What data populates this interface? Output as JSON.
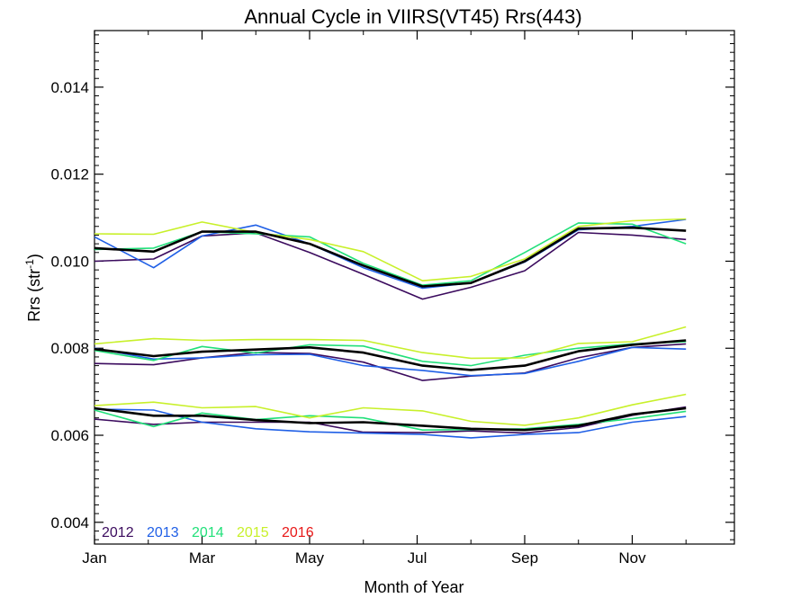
{
  "chart_data": {
    "type": "line",
    "title": "Annual Cycle in VIIRS(VT45) Rrs(443)",
    "xlabel": "Month of Year",
    "ylabel_main": "Rrs (str",
    "ylabel_sup": "-1",
    "ylabel_close": ")",
    "xlim": [
      1,
      12.9
    ],
    "ylim": [
      0.0035,
      0.0153
    ],
    "x_ticks": [
      {
        "value": 1,
        "label": "Jan"
      },
      {
        "value": 3,
        "label": "Mar"
      },
      {
        "value": 5,
        "label": "May"
      },
      {
        "value": 7,
        "label": "Jul"
      },
      {
        "value": 9,
        "label": "Sep"
      },
      {
        "value": 11,
        "label": "Nov"
      }
    ],
    "y_ticks": [
      {
        "value": 0.004,
        "label": "0.004"
      },
      {
        "value": 0.006,
        "label": "0.006"
      },
      {
        "value": 0.008,
        "label": "0.008"
      },
      {
        "value": 0.01,
        "label": "0.010"
      },
      {
        "value": 0.012,
        "label": "0.012"
      },
      {
        "value": 0.014,
        "label": "0.014"
      }
    ],
    "legend": [
      {
        "label": "2012",
        "color": "#3b0b5e"
      },
      {
        "label": "2013",
        "color": "#1f5fe6"
      },
      {
        "label": "2014",
        "color": "#22e07a"
      },
      {
        "label": "2015",
        "color": "#c8f02a"
      },
      {
        "label": "2016",
        "color": "#e81818"
      }
    ],
    "legend_position": "bottom-left",
    "x": [
      1.0,
      2.1,
      3.0,
      4.0,
      5.0,
      6.0,
      7.1,
      8.0,
      9.0,
      10.0,
      11.0,
      12.0
    ],
    "groups": [
      {
        "group": "upper",
        "series": [
          {
            "year": "2012",
            "color": "#3b0b5e",
            "values": [
              0.01,
              0.01005,
              0.01058,
              0.01065,
              0.0102,
              0.0097,
              0.00913,
              0.0094,
              0.00978,
              0.01066,
              0.0106,
              0.0105
            ]
          },
          {
            "year": "2013",
            "color": "#1f5fe6",
            "values": [
              0.01056,
              0.00985,
              0.01058,
              0.01083,
              0.0104,
              0.00985,
              0.00938,
              0.0095,
              0.00998,
              0.01072,
              0.0108,
              0.01096
            ]
          },
          {
            "year": "2014",
            "color": "#22e07a",
            "values": [
              0.01027,
              0.0103,
              0.01068,
              0.01063,
              0.01056,
              0.00995,
              0.00945,
              0.00955,
              0.0102,
              0.01088,
              0.01085,
              0.0104
            ]
          },
          {
            "year": "2015",
            "color": "#c8f02a",
            "values": [
              0.01063,
              0.01062,
              0.0109,
              0.01066,
              0.0105,
              0.01022,
              0.00955,
              0.00965,
              0.01005,
              0.0108,
              0.01093,
              0.01097
            ]
          },
          {
            "year": "mean",
            "color": "#000000",
            "values": [
              0.0103,
              0.01022,
              0.01068,
              0.01068,
              0.0104,
              0.0099,
              0.00942,
              0.0095,
              0.01,
              0.01075,
              0.01077,
              0.0107
            ]
          }
        ]
      },
      {
        "group": "middle",
        "series": [
          {
            "year": "2012",
            "color": "#3b0b5e",
            "values": [
              0.00765,
              0.00762,
              0.00778,
              0.0079,
              0.00788,
              0.00768,
              0.00726,
              0.00736,
              0.00743,
              0.00778,
              0.00802,
              0.0081
            ]
          },
          {
            "year": "2013",
            "color": "#1f5fe6",
            "values": [
              0.008,
              0.00775,
              0.00778,
              0.00785,
              0.00786,
              0.0076,
              0.00749,
              0.00737,
              0.00742,
              0.0077,
              0.00802,
              0.00798
            ]
          },
          {
            "year": "2014",
            "color": "#22e07a",
            "values": [
              0.00795,
              0.00772,
              0.00804,
              0.00789,
              0.00808,
              0.00805,
              0.0077,
              0.0076,
              0.00784,
              0.008,
              0.0081,
              0.00815
            ]
          },
          {
            "year": "2015",
            "color": "#c8f02a",
            "values": [
              0.0081,
              0.00822,
              0.00818,
              0.0082,
              0.0082,
              0.00818,
              0.0079,
              0.00777,
              0.00778,
              0.00811,
              0.00815,
              0.00849
            ]
          },
          {
            "year": "mean",
            "color": "#000000",
            "values": [
              0.00798,
              0.00782,
              0.00792,
              0.00797,
              0.00802,
              0.0079,
              0.0076,
              0.0075,
              0.0076,
              0.00793,
              0.00808,
              0.00818
            ]
          }
        ]
      },
      {
        "group": "lower",
        "series": [
          {
            "year": "2012",
            "color": "#3b0b5e",
            "values": [
              0.00637,
              0.00625,
              0.0063,
              0.0063,
              0.0063,
              0.00607,
              0.00606,
              0.0061,
              0.00605,
              0.00618,
              0.00646,
              0.00665
            ]
          },
          {
            "year": "2013",
            "color": "#1f5fe6",
            "values": [
              0.0066,
              0.00658,
              0.0063,
              0.00615,
              0.00608,
              0.00605,
              0.00602,
              0.00594,
              0.00602,
              0.00606,
              0.0063,
              0.00643
            ]
          },
          {
            "year": "2014",
            "color": "#22e07a",
            "values": [
              0.00658,
              0.0062,
              0.00651,
              0.00636,
              0.00645,
              0.0064,
              0.00612,
              0.00613,
              0.00615,
              0.00625,
              0.00638,
              0.00655
            ]
          },
          {
            "year": "2015",
            "color": "#c8f02a",
            "values": [
              0.00668,
              0.00676,
              0.00663,
              0.00666,
              0.0064,
              0.00663,
              0.00656,
              0.00632,
              0.00623,
              0.0064,
              0.0067,
              0.00694
            ]
          },
          {
            "year": "mean",
            "color": "#000000",
            "values": [
              0.00662,
              0.00645,
              0.00645,
              0.00635,
              0.00628,
              0.0063,
              0.00622,
              0.00615,
              0.00612,
              0.00622,
              0.00648,
              0.00662
            ]
          }
        ]
      }
    ]
  }
}
